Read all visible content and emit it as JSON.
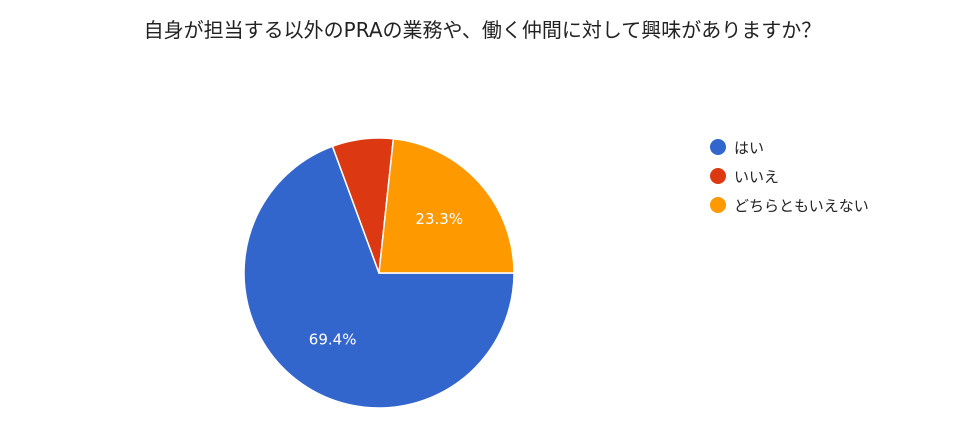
{
  "chart_data": {
    "type": "pie",
    "title": "自身が担当する以外のPRAの業務や、働く仲間に対して興味がありますか？",
    "categories": [
      "はい",
      "いいえ",
      "どちらともいえない"
    ],
    "values": [
      69.4,
      7.3,
      23.3
    ],
    "labels": [
      "69.4%",
      "",
      "23.3%"
    ],
    "colors": [
      "#3366cc",
      "#dc3912",
      "#ff9900"
    ],
    "legend_position": "right"
  }
}
